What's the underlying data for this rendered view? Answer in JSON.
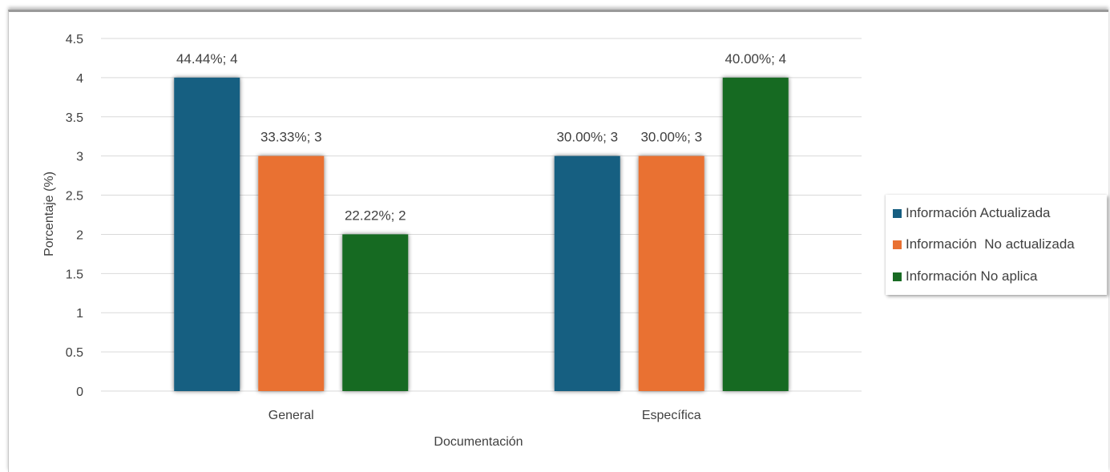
{
  "chart_data": {
    "type": "bar",
    "xlabel": "Documentación",
    "ylabel": "Porcentaje (%)",
    "ylim": [
      0,
      4.5
    ],
    "yticks": [
      "0",
      "0.5",
      "1",
      "1.5",
      "2",
      "2.5",
      "3",
      "3.5",
      "4",
      "4.5"
    ],
    "grid": true,
    "legend_position": "right",
    "categories": [
      "General",
      "Específica"
    ],
    "series": [
      {
        "name": "Información Actualizada",
        "color": "#165e81",
        "values": [
          4,
          3
        ],
        "labels": [
          "44.44%; 4",
          "30.00%; 3"
        ]
      },
      {
        "name": "Información  No actualizada",
        "color": "#e97132",
        "values": [
          3,
          3
        ],
        "labels": [
          "33.33%; 3",
          "30.00%; 3"
        ]
      },
      {
        "name": "Información No aplica",
        "color": "#196b24",
        "values": [
          2,
          4
        ],
        "labels": [
          "22.22%; 2",
          "40.00%; 4"
        ]
      }
    ]
  }
}
